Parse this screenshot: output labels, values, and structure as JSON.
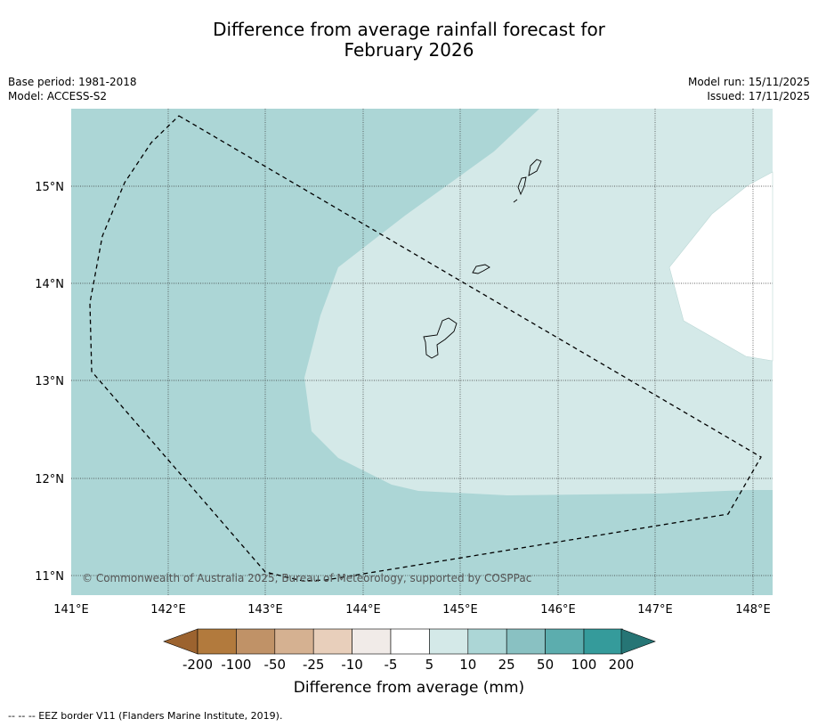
{
  "title": {
    "line1": "Difference from average rainfall forecast for",
    "line2": "February 2026"
  },
  "meta_left": {
    "base_period": "Base period: 1981-2018",
    "model": "Model: ACCESS-S2"
  },
  "meta_right": {
    "model_run": "Model run: 15/11/2025",
    "issued": "Issued: 17/11/2025"
  },
  "map": {
    "lon_range": [
      141,
      148.2
    ],
    "lat_range": [
      10.8,
      15.8
    ],
    "lon_ticks": [
      "141°E",
      "142°E",
      "143°E",
      "144°E",
      "145°E",
      "146°E",
      "147°E",
      "148°E"
    ],
    "lat_ticks": [
      "15°N",
      "14°N",
      "13°N",
      "12°N",
      "11°N"
    ],
    "copyright": "© Commonwealth of Australia 2025, Bureau of Meteorology, supported by COSPPac",
    "regions": [
      {
        "category": "10 to 25",
        "color": "#acd6d6"
      },
      {
        "category": "5 to 10",
        "color": "#d4e9e8"
      },
      {
        "category": "-5 to 5",
        "color": "#ffffff"
      }
    ]
  },
  "colorbar": {
    "ticks": [
      "-200",
      "-100",
      "-50",
      "-25",
      "-10",
      "-5",
      "5",
      "10",
      "25",
      "50",
      "100",
      "200"
    ],
    "colors": [
      "#b27a3d",
      "#c09267",
      "#d5b191",
      "#e8cfbb",
      "#f1ebe8",
      "#ffffff",
      "#d4e9e8",
      "#acd6d6",
      "#89c1c2",
      "#5cadae",
      "#359b9b"
    ],
    "low_extend_color": "#9c632f",
    "high_extend_color": "#267575",
    "label": "Difference from average (mm)"
  },
  "footer": "--  --  -- EEZ border V11 (Flanders Marine Institute, 2019)."
}
